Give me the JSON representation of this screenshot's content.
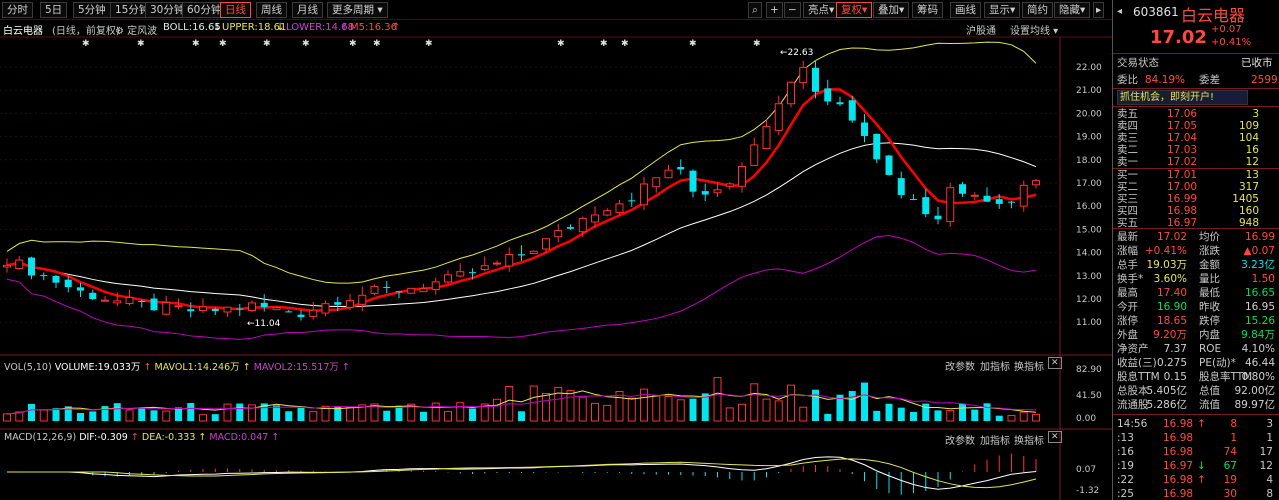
{
  "toolbar": {
    "periods": [
      "分时",
      "5日",
      "5分钟",
      "15分钟",
      "30分钟",
      "60分钟",
      "日线",
      "周线",
      "月线",
      "更多周期"
    ],
    "active_period": "日线",
    "tools": [
      "亮点",
      "复权",
      "叠加",
      "筹码",
      "画线",
      "显示",
      "简约",
      "隐藏"
    ]
  },
  "header": {
    "name": "白云电器",
    "adjust": "(日线，前复权)",
    "mode": "定风波",
    "boll": "BOLL:16.65",
    "upper": "UPPER:18.61",
    "lower": "LOWER:14.68",
    "ma5": "M5:16.36",
    "right_link1": "沪股通",
    "right_link2": "设置均线"
  },
  "price_axis": [
    "22.00",
    "21.00",
    "20.00",
    "19.00",
    "18.00",
    "17.00",
    "16.00",
    "15.00",
    "14.00",
    "13.00",
    "12.00",
    "11.00"
  ],
  "annotations": {
    "high": "22.63",
    "low": "11.04"
  },
  "vol": {
    "label": "VOL(5,10)",
    "volume": "VOLUME:19.033万",
    "mavol1": "MAVOL1:14.246万",
    "mavol2": "MAVOL2:15.517万",
    "axis": [
      "82.90",
      "41.50",
      "0.00"
    ],
    "actions": [
      "改参数",
      "加指标",
      "换指标"
    ]
  },
  "macd": {
    "label": "MACD(12,26,9)",
    "dif": "DIF:-0.309",
    "dea": "DEA:-0.333",
    "macd": "MACD:0.047",
    "axis": [
      "0.07",
      "-1.32"
    ],
    "actions": [
      "改参数",
      "加指标",
      "换指标"
    ]
  },
  "panel": {
    "code": "603861",
    "name": "白云电器",
    "price": "17.02",
    "change": "+0.07",
    "change_pct": "+0.41%",
    "trade_status_label": "交易状态",
    "trade_status": "已收市",
    "weibi_label": "委比",
    "weibi": "84.19%",
    "weicha_label": "委差",
    "weicha": "2599",
    "banner": "抓住机会，即刻开户!",
    "asks": [
      {
        "label": "卖五",
        "price": "17.06",
        "vol": "3"
      },
      {
        "label": "卖四",
        "price": "17.05",
        "vol": "109"
      },
      {
        "label": "卖三",
        "price": "17.04",
        "vol": "104"
      },
      {
        "label": "卖二",
        "price": "17.03",
        "vol": "16"
      },
      {
        "label": "卖一",
        "price": "17.02",
        "vol": "12"
      }
    ],
    "bids": [
      {
        "label": "买一",
        "price": "17.01",
        "vol": "13"
      },
      {
        "label": "买二",
        "price": "17.00",
        "vol": "317"
      },
      {
        "label": "买三",
        "price": "16.99",
        "vol": "1405"
      },
      {
        "label": "买四",
        "price": "16.98",
        "vol": "160"
      },
      {
        "label": "买五",
        "price": "16.97",
        "vol": "948"
      }
    ],
    "stats": [
      {
        "l1": "最新",
        "v1": "17.02",
        "l2": "均价",
        "v2": "16.99",
        "c1": "#ff4a3a",
        "c2": "#ff4a3a"
      },
      {
        "l1": "涨幅",
        "v1": "+0.41%",
        "l2": "涨跌",
        "v2": "▲0.07",
        "c1": "#ff4a3a",
        "c2": "#ff4a3a"
      },
      {
        "l1": "总手",
        "v1": "19.03万",
        "l2": "金额",
        "v2": "3.23亿",
        "c1": "#e6e64c",
        "c2": "#00e5ee"
      },
      {
        "l1": "换手*",
        "v1": "3.60%",
        "l2": "量比",
        "v2": "1.50",
        "c1": "#e6e64c",
        "c2": "#ff4a3a"
      },
      {
        "l1": "最高",
        "v1": "17.40",
        "l2": "最低",
        "v2": "16.65",
        "c1": "#ff4a3a",
        "c2": "#00e060"
      },
      {
        "l1": "今开",
        "v1": "16.90",
        "l2": "昨收",
        "v2": "16.95",
        "c1": "#00e060",
        "c2": "#d0d0d0"
      },
      {
        "l1": "涨停",
        "v1": "18.65",
        "l2": "跌停",
        "v2": "15.26",
        "c1": "#ff4a3a",
        "c2": "#00e060"
      },
      {
        "l1": "外盘",
        "v1": "9.20万",
        "l2": "内盘",
        "v2": "9.84万",
        "c1": "#ff4a3a",
        "c2": "#00e060"
      },
      {
        "l1": "净资产",
        "v1": "7.37",
        "l2": "ROE",
        "v2": "4.10%",
        "c1": "#d0d0d0",
        "c2": "#d0d0d0"
      },
      {
        "l1": "收益(三)",
        "v1": "0.275",
        "l2": "PE(动)*",
        "v2": "46.44",
        "c1": "#d0d0d0",
        "c2": "#d0d0d0"
      },
      {
        "l1": "股息TTM",
        "v1": "0.15",
        "l2": "股息率TTM",
        "v2": "0.80%",
        "c1": "#d0d0d0",
        "c2": "#d0d0d0"
      },
      {
        "l1": "总股本",
        "v1": "5.405亿",
        "l2": "总值",
        "v2": "92.00亿",
        "c1": "#d0d0d0",
        "c2": "#d0d0d0"
      },
      {
        "l1": "流通股",
        "v1": "5.286亿",
        "l2": "流值",
        "v2": "89.97亿",
        "c1": "#d0d0d0",
        "c2": "#d0d0d0"
      }
    ],
    "ticks": [
      {
        "time": "14:56",
        "price": "16.98",
        "arrow": "↑",
        "vol": "8",
        "n": "3",
        "pc": "#ff4a3a",
        "vc": "#ff4a3a"
      },
      {
        "time": ":13",
        "price": "16.98",
        "arrow": "",
        "vol": "1",
        "n": "1",
        "pc": "#ff4a3a",
        "vc": "#ff4a3a"
      },
      {
        "time": ":16",
        "price": "16.98",
        "arrow": "",
        "vol": "74",
        "n": "17",
        "pc": "#ff4a3a",
        "vc": "#ff4a3a"
      },
      {
        "time": ":19",
        "price": "16.97",
        "arrow": "↓",
        "vol": "67",
        "n": "12",
        "pc": "#ff4a3a",
        "vc": "#00e060"
      },
      {
        "time": ":22",
        "price": "16.98",
        "arrow": "↑",
        "vol": "19",
        "n": "4",
        "pc": "#ff4a3a",
        "vc": "#ff4a3a"
      },
      {
        "time": ":25",
        "price": "16.98",
        "arrow": "",
        "vol": "30",
        "n": "8",
        "pc": "#ff4a3a",
        "vc": "#ff4a3a"
      }
    ]
  },
  "colors": {
    "up": "#ff3030",
    "down": "#00e5ee",
    "ma5": "#ff0000",
    "upper": "#e6e64c",
    "mid": "#ffffff",
    "lower": "#c000c0"
  }
}
